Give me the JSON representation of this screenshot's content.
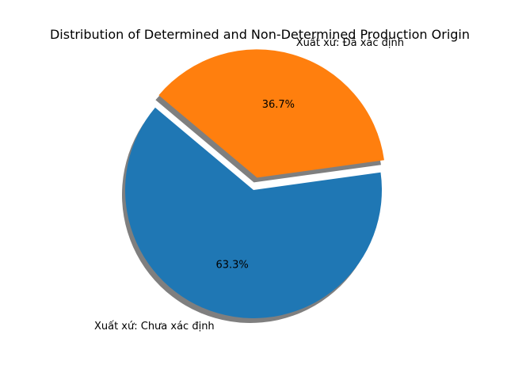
{
  "chart_data": {
    "type": "pie",
    "title": "Distribution of Determined and Non-Determined Production Origin",
    "slices": [
      {
        "label": "Xuất xứ: Chưa xác định",
        "value": 63.3,
        "pct_label": "63.3%",
        "color": "#1f77b4",
        "explode": false
      },
      {
        "label": "Xuất xứ: Đã xác định",
        "value": 36.7,
        "pct_label": "36.7%",
        "color": "#ff7f0e",
        "explode": true
      }
    ],
    "start_angle_deg": 140,
    "shadow": true,
    "legend": "none"
  }
}
